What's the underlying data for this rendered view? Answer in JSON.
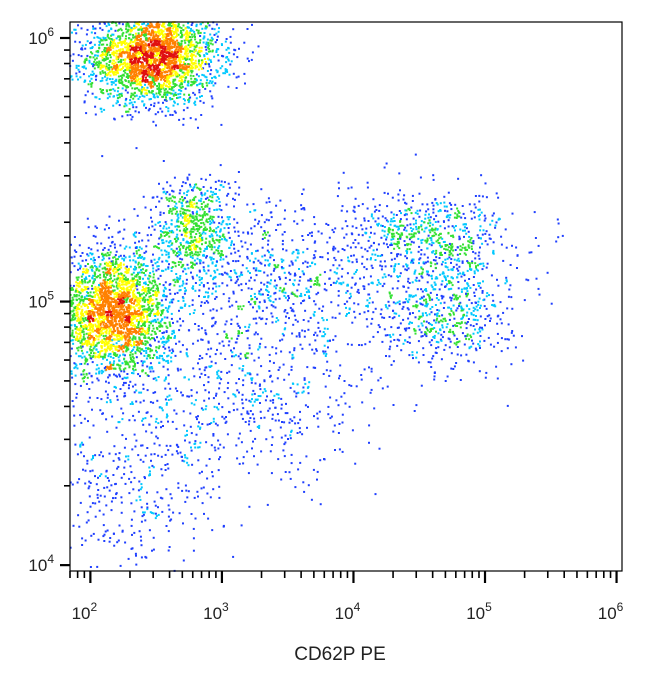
{
  "chart_data": {
    "type": "scatter",
    "subtype": "flow-cytometry-density-dot-plot",
    "title": "",
    "xlabel": "CD62P PE",
    "ylabel": "",
    "x_scale": "log",
    "y_scale": "log",
    "xlim": [
      70,
      1100000
    ],
    "ylim": [
      9500,
      1150000
    ],
    "x_ticks": [
      {
        "value": 100,
        "base": "10",
        "exp": "2"
      },
      {
        "value": 1000,
        "base": "10",
        "exp": "3"
      },
      {
        "value": 10000,
        "base": "10",
        "exp": "4"
      },
      {
        "value": 100000,
        "base": "10",
        "exp": "5"
      },
      {
        "value": 1000000,
        "base": "10",
        "exp": "6"
      }
    ],
    "y_ticks": [
      {
        "value": 10000,
        "base": "10",
        "exp": "4"
      },
      {
        "value": 100000,
        "base": "10",
        "exp": "5"
      },
      {
        "value": 1000000,
        "base": "10",
        "exp": "6"
      }
    ],
    "density_colors": [
      "#00008b",
      "#1f3fff",
      "#00c8ff",
      "#33e033",
      "#ffff00",
      "#ff8000",
      "#e01010"
    ],
    "clusters": [
      {
        "center_x": 300,
        "center_y": 850000,
        "spread_x_decades": 0.25,
        "spread_y_decades": 0.09,
        "weight": 0.3
      },
      {
        "center_x": 150,
        "center_y": 90000,
        "spread_x_decades": 0.22,
        "spread_y_decades": 0.12,
        "weight": 0.3
      },
      {
        "center_x": 600,
        "center_y": 190000,
        "spread_x_decades": 0.15,
        "spread_y_decades": 0.1,
        "weight": 0.07
      },
      {
        "center_x": 40000,
        "center_y": 180000,
        "spread_x_decades": 0.3,
        "spread_y_decades": 0.08,
        "weight": 0.06
      },
      {
        "center_x": 50000,
        "center_y": 95000,
        "spread_x_decades": 0.25,
        "spread_y_decades": 0.12,
        "weight": 0.07
      },
      {
        "center_x": 3000,
        "center_y": 120000,
        "spread_x_decades": 0.55,
        "spread_y_decades": 0.15,
        "weight": 0.1
      },
      {
        "center_x": 1500,
        "center_y": 40000,
        "spread_x_decades": 0.5,
        "spread_y_decades": 0.15,
        "weight": 0.06
      },
      {
        "center_x": 200,
        "center_y": 20000,
        "spread_x_decades": 0.35,
        "spread_y_decades": 0.18,
        "weight": 0.04
      }
    ],
    "point_count": 9000,
    "grid": false,
    "legend": "none"
  }
}
